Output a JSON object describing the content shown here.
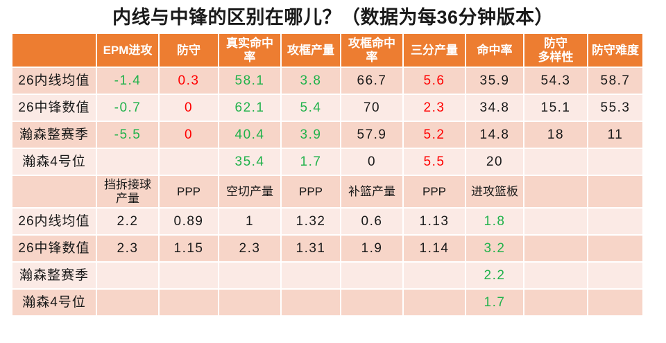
{
  "title": "内线与中锋的区别在哪儿？（数据为每36分钟版本）",
  "colors": {
    "header_bg": "#ED7D31",
    "header_text": "#FFFFFF",
    "band_dark": "#F7D5C8",
    "band_light": "#FBEAE5",
    "positive_green": "#21B24B",
    "warning_red": "#FF0000",
    "text_black": "#1A1A1A"
  },
  "chart_data": {
    "type": "table",
    "title": "内线与中锋的区别在哪儿？（数据为每36分钟版本）",
    "sections": [
      {
        "header_style": "main",
        "columns": [
          "",
          "EPM进攻",
          "防守",
          "真实命中\n率",
          "攻框产量",
          "攻框命中\n率",
          "三分产量",
          "命中率",
          "防守\n多样性",
          "防守难度"
        ],
        "rows": [
          {
            "label": "26内线均值",
            "band": "dark",
            "cells": [
              {
                "t": "-1.4",
                "c": "green"
              },
              {
                "t": "0.3",
                "c": "red"
              },
              {
                "t": "58.1",
                "c": "green"
              },
              {
                "t": "3.8",
                "c": "green"
              },
              {
                "t": "66.7"
              },
              {
                "t": "5.6",
                "c": "red"
              },
              {
                "t": "35.9"
              },
              {
                "t": "54.3"
              },
              {
                "t": "58.7"
              }
            ]
          },
          {
            "label": "26中锋数值",
            "band": "light",
            "cells": [
              {
                "t": "-0.7",
                "c": "green"
              },
              {
                "t": "0",
                "c": "red"
              },
              {
                "t": "62.1",
                "c": "green"
              },
              {
                "t": "5.4",
                "c": "green"
              },
              {
                "t": "70"
              },
              {
                "t": "2.3",
                "c": "red"
              },
              {
                "t": "34.8"
              },
              {
                "t": "15.1"
              },
              {
                "t": "55.3"
              }
            ]
          },
          {
            "label": "瀚森整赛季",
            "band": "dark",
            "cells": [
              {
                "t": "-5.5",
                "c": "green"
              },
              {
                "t": "0",
                "c": "red"
              },
              {
                "t": "40.4",
                "c": "green"
              },
              {
                "t": "3.9",
                "c": "green"
              },
              {
                "t": "57.9"
              },
              {
                "t": "5.2",
                "c": "red"
              },
              {
                "t": "14.8"
              },
              {
                "t": "18"
              },
              {
                "t": "11"
              }
            ]
          },
          {
            "label": "瀚森4号位",
            "band": "light",
            "cells": [
              {
                "t": ""
              },
              {
                "t": ""
              },
              {
                "t": "35.4",
                "c": "green"
              },
              {
                "t": "1.7",
                "c": "green"
              },
              {
                "t": "0"
              },
              {
                "t": "5.5",
                "c": "red"
              },
              {
                "t": "20"
              },
              {
                "t": ""
              },
              {
                "t": ""
              }
            ]
          }
        ]
      },
      {
        "header_style": "sub",
        "columns": [
          "",
          "挡拆接球\n产量",
          "PPP",
          "空切产量",
          "PPP",
          "补篮产量",
          "PPP",
          "进攻篮板",
          "",
          ""
        ],
        "rows": [
          {
            "label": "26内线均值",
            "band": "light",
            "cells": [
              {
                "t": "2.2"
              },
              {
                "t": "0.89"
              },
              {
                "t": "1"
              },
              {
                "t": "1.32"
              },
              {
                "t": "0.6"
              },
              {
                "t": "1.13"
              },
              {
                "t": "1.8",
                "c": "green"
              },
              {
                "t": ""
              },
              {
                "t": ""
              }
            ]
          },
          {
            "label": "26中锋数值",
            "band": "dark",
            "cells": [
              {
                "t": "2.3"
              },
              {
                "t": "1.15"
              },
              {
                "t": "2.3"
              },
              {
                "t": "1.31"
              },
              {
                "t": "1.9"
              },
              {
                "t": "1.14"
              },
              {
                "t": "3.2",
                "c": "green"
              },
              {
                "t": ""
              },
              {
                "t": ""
              }
            ]
          },
          {
            "label": "瀚森整赛季",
            "band": "light",
            "cells": [
              {
                "t": ""
              },
              {
                "t": ""
              },
              {
                "t": ""
              },
              {
                "t": ""
              },
              {
                "t": ""
              },
              {
                "t": ""
              },
              {
                "t": "2.2",
                "c": "green"
              },
              {
                "t": ""
              },
              {
                "t": ""
              }
            ]
          },
          {
            "label": "瀚森4号位",
            "band": "dark",
            "cells": [
              {
                "t": ""
              },
              {
                "t": ""
              },
              {
                "t": ""
              },
              {
                "t": ""
              },
              {
                "t": ""
              },
              {
                "t": ""
              },
              {
                "t": "1.7",
                "c": "green"
              },
              {
                "t": ""
              },
              {
                "t": ""
              }
            ]
          }
        ]
      }
    ]
  }
}
